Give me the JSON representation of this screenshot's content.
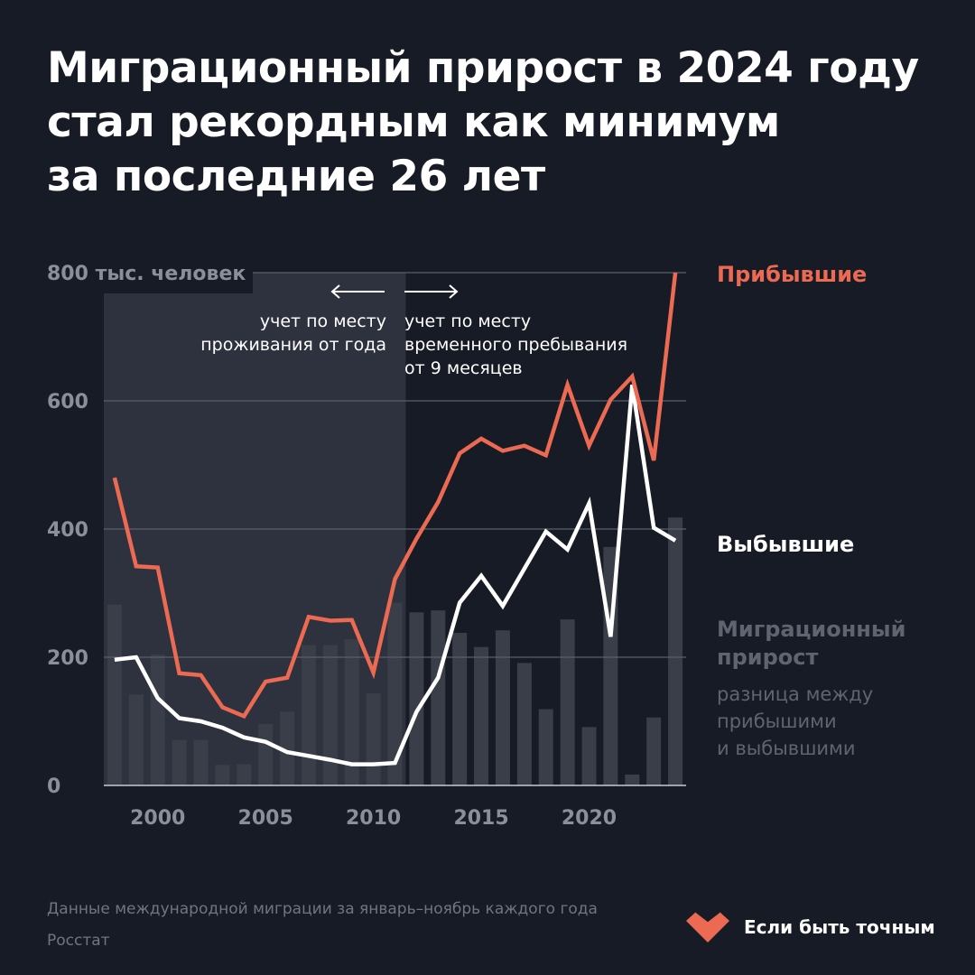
{
  "title": {
    "line1": "Миграционный прирост в 2024 году",
    "line2": "стал рекордным как минимум",
    "line3": "за последние 26 лет"
  },
  "colors": {
    "background": "#171b25",
    "arrivals": "#ec6a52",
    "departures": "#ffffff",
    "net_bars": "#3a3e48",
    "shade": "#2e323e",
    "grid": "#5a5f6a"
  },
  "annotations": {
    "left_line1": "учет по месту",
    "left_line2": "проживания от года",
    "right_line1": "учет по месту",
    "right_line2": "временного пребывания",
    "right_line3": "от 9 месяцев"
  },
  "legend": {
    "arrivals": "Прибывшие",
    "departures": "Выбывшие",
    "net_title1": "Миграционный",
    "net_title2": "прирост",
    "net_desc1": "разница между",
    "net_desc2": "прибышими",
    "net_desc3": "и выбывшими"
  },
  "source": {
    "note": "Данные международной миграции за январь–ноябрь каждого года",
    "org": "Росстат"
  },
  "brand": {
    "name": "Если быть точным",
    "icon": "heart-logo-icon"
  },
  "chart_data": {
    "type": "line",
    "ylabel": "тыс. человек",
    "ylim": [
      0,
      800
    ],
    "yticks": [
      {
        "value": 800,
        "label": "800 тыс. человек"
      },
      {
        "value": 600,
        "label": "600"
      },
      {
        "value": 400,
        "label": "400"
      },
      {
        "value": 200,
        "label": "200"
      },
      {
        "value": 0,
        "label": "0"
      }
    ],
    "xticks": [
      2000,
      2005,
      2010,
      2015,
      2020
    ],
    "xlim": [
      1997.5,
      2024.5
    ],
    "shaded_region": {
      "from": 1998,
      "to": 2011
    },
    "x": [
      1998,
      1999,
      2000,
      2001,
      2002,
      2003,
      2004,
      2005,
      2006,
      2007,
      2008,
      2009,
      2010,
      2011,
      2012,
      2013,
      2014,
      2015,
      2016,
      2017,
      2018,
      2019,
      2020,
      2021,
      2022,
      2023,
      2024
    ],
    "series": [
      {
        "name": "Прибывшие",
        "kind": "line",
        "values": [
          480,
          342,
          340,
          175,
          172,
          122,
          108,
          162,
          168,
          263,
          257,
          258,
          176,
          322,
          385,
          442,
          518,
          541,
          522,
          530,
          515,
          625,
          530,
          602,
          638,
          507,
          800
        ]
      },
      {
        "name": "Выбывшие",
        "kind": "line",
        "values": [
          196,
          200,
          136,
          105,
          100,
          90,
          75,
          68,
          52,
          46,
          40,
          33,
          33,
          35,
          115,
          168,
          285,
          327,
          280,
          338,
          396,
          368,
          440,
          232,
          625,
          402,
          382
        ]
      },
      {
        "name": "Миграционный прирост",
        "kind": "bar",
        "values": [
          282,
          142,
          204,
          71,
          71,
          32,
          33,
          96,
          115,
          219,
          219,
          228,
          144,
          285,
          270,
          273,
          238,
          216,
          242,
          191,
          119,
          259,
          91,
          372,
          17,
          106,
          418
        ]
      }
    ]
  }
}
